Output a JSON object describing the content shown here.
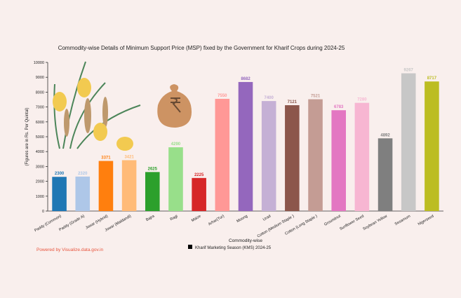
{
  "chart_data": {
    "type": "bar",
    "title": "Commodity-wise Details of Minimum Support Price (MSP) fixed by the Government for Kharif Crops during 2024-25",
    "x_label": "Commodity-wise",
    "y_label": "(Figures are in Rs. Per Quintal)",
    "footer": "Powered by Visualize.data.gov.in",
    "categories": [
      "Paddy (Common)",
      "Paddy (Grade A)",
      "Jowar (Hybrid)",
      "Jowar (Maldandi)",
      "Bajra",
      "Ragi",
      "Maize",
      "Arhar(Tur)",
      "Moong",
      "Urad",
      "Cotton (Medium Staple )",
      "Cotton (Long Staple )",
      "Groundnut",
      "Sunflower Seed",
      "Soybean Yellow",
      "Sesamum",
      "Nigerseed"
    ],
    "series": [
      {
        "name": "Kharif Marketing Season (KMS) 2024-25",
        "color": "#000000",
        "colors": [
          "#1f77b4",
          "#aec7e8",
          "#ff7f0e",
          "#ffbb78",
          "#2ca02c",
          "#98df8a",
          "#d62728",
          "#ff9896",
          "#9467bd",
          "#c5b0d5",
          "#8c564b",
          "#c49c94",
          "#e377c2",
          "#f7b6d2",
          "#7f7f7f",
          "#c7c7c7",
          "#bcbd22"
        ],
        "values": [
          2300,
          2320,
          3371,
          3421,
          2625,
          4290,
          2225,
          7550,
          8682,
          7400,
          7121,
          7521,
          6783,
          7280,
          4892,
          9267,
          8717
        ]
      }
    ],
    "ylim": [
      0,
      10000
    ],
    "yticks": [
      0,
      1000,
      2000,
      3000,
      4000,
      5000,
      6000,
      7000,
      8000,
      9000,
      10000
    ]
  }
}
